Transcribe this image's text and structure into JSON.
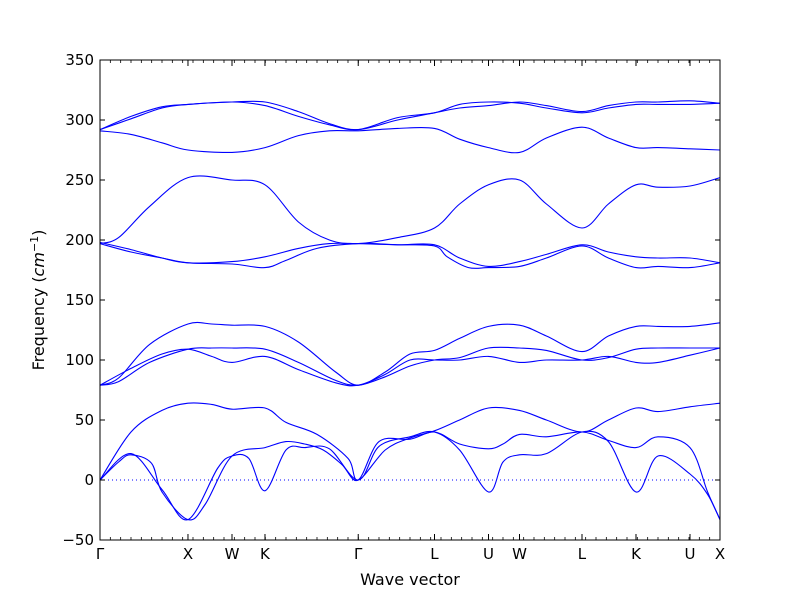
{
  "chart_data": {
    "type": "line",
    "title": "",
    "xlabel": "Wave vector",
    "ylabel_prefix": "Frequency (",
    "ylabel_unit": "cm",
    "ylabel_exp": "−1",
    "ylabel_suffix": ")",
    "ylim": [
      -50,
      350
    ],
    "yticks": [
      -50,
      0,
      50,
      100,
      150,
      200,
      250,
      300,
      350
    ],
    "ytick_labels": [
      "−50",
      "0",
      "50",
      "100",
      "150",
      "200",
      "250",
      "300",
      "350"
    ],
    "xlim": [
      0,
      1
    ],
    "high_symmetry_points": [
      {
        "label": "Γ",
        "x": 0.0
      },
      {
        "label": "X",
        "x": 0.1419
      },
      {
        "label": "W",
        "x": 0.2129
      },
      {
        "label": "K",
        "x": 0.2661
      },
      {
        "label": "Γ",
        "x": 0.4165
      },
      {
        "label": "L",
        "x": 0.5395
      },
      {
        "label": "U",
        "x": 0.6266
      },
      {
        "label": "W",
        "x": 0.6766
      },
      {
        "label": "L",
        "x": 0.7774
      },
      {
        "label": "K",
        "x": 0.8645
      },
      {
        "label": "U",
        "x": 0.9516
      },
      {
        "label": "X",
        "x": 1.0
      }
    ],
    "zero_line": 0,
    "grid": false,
    "series": [
      {
        "x": [
          0,
          0.03,
          0.05,
          0.083,
          0.1,
          0.1419,
          0.17,
          0.2129,
          0.2661,
          0.3,
          0.33,
          0.36,
          0.39,
          0.4165,
          0.45,
          0.5,
          0.5395,
          0.58,
          0.6266,
          0.65,
          0.6766,
          0.72,
          0.7774,
          0.82,
          0.8645,
          0.9,
          0.9516,
          0.98,
          1.0
        ],
        "y": [
          0,
          15,
          21,
          14,
          -10,
          -33,
          -20,
          20,
          27,
          32,
          30,
          25,
          13,
          0,
          32,
          34,
          40,
          30,
          26,
          30,
          38,
          36,
          40,
          33,
          27,
          36,
          27,
          -10,
          -33
        ]
      },
      {
        "x": [
          0,
          0.05,
          0.1,
          0.1419,
          0.19,
          0.2129,
          0.24,
          0.2661,
          0.3,
          0.33,
          0.37,
          0.4165,
          0.45,
          0.5,
          0.5395,
          0.58,
          0.6266,
          0.65,
          0.6766,
          0.72,
          0.7774,
          0.82,
          0.8645,
          0.9,
          0.9516,
          0.98,
          1.0
        ],
        "y": [
          0,
          22,
          -8,
          -33,
          10,
          20,
          18,
          -9,
          25,
          27,
          26,
          0,
          28,
          36,
          40,
          25,
          -10,
          15,
          21,
          22,
          40,
          32,
          -10,
          20,
          5,
          -12,
          -33
        ]
      },
      {
        "x": [
          0,
          0.05,
          0.1,
          0.1419,
          0.18,
          0.2129,
          0.2661,
          0.3,
          0.35,
          0.4,
          0.4165,
          0.46,
          0.5,
          0.5395,
          0.58,
          0.6266,
          0.6766,
          0.72,
          0.7774,
          0.82,
          0.8645,
          0.9,
          0.9516,
          1.0
        ],
        "y": [
          0,
          40,
          58,
          64,
          63,
          59,
          60,
          48,
          38,
          18,
          0,
          25,
          35,
          41,
          50,
          60,
          58,
          50,
          40,
          50,
          60,
          57,
          61,
          64
        ]
      },
      {
        "x": [
          0,
          0.03,
          0.08,
          0.1419,
          0.18,
          0.2129,
          0.2661,
          0.32,
          0.38,
          0.4165,
          0.46,
          0.5,
          0.5395,
          0.58,
          0.6266,
          0.6766,
          0.72,
          0.7774,
          0.82,
          0.8645,
          0.9,
          0.9516,
          1.0
        ],
        "y": [
          79,
          82,
          98,
          109,
          110,
          110,
          109,
          98,
          83,
          79,
          86,
          95,
          100,
          102,
          110,
          110,
          108,
          100,
          102,
          109,
          110,
          110,
          110
        ]
      },
      {
        "x": [
          0,
          0.05,
          0.1,
          0.1419,
          0.18,
          0.2129,
          0.2661,
          0.32,
          0.38,
          0.4165,
          0.46,
          0.5,
          0.5395,
          0.58,
          0.6266,
          0.6766,
          0.72,
          0.7774,
          0.82,
          0.8645,
          0.9,
          0.9516,
          1.0
        ],
        "y": [
          79,
          93,
          105,
          109,
          103,
          98,
          103,
          92,
          81,
          79,
          88,
          100,
          100,
          100,
          103,
          98,
          100,
          100,
          103,
          98,
          98,
          104,
          110
        ]
      },
      {
        "x": [
          0,
          0.03,
          0.08,
          0.1419,
          0.18,
          0.2129,
          0.2661,
          0.32,
          0.38,
          0.4165,
          0.46,
          0.5,
          0.5395,
          0.58,
          0.6266,
          0.6766,
          0.72,
          0.7774,
          0.82,
          0.8645,
          0.9,
          0.9516,
          1.0
        ],
        "y": [
          79,
          85,
          113,
          130,
          130,
          129,
          128,
          115,
          90,
          79,
          90,
          105,
          108,
          118,
          128,
          129,
          120,
          107,
          120,
          128,
          128,
          128,
          131
        ]
      },
      {
        "x": [
          0,
          0.05,
          0.1,
          0.1419,
          0.2129,
          0.2661,
          0.32,
          0.37,
          0.4165,
          0.48,
          0.5395,
          0.58,
          0.6266,
          0.6766,
          0.72,
          0.7774,
          0.82,
          0.8645,
          0.9,
          0.9516,
          1.0
        ],
        "y": [
          198,
          192,
          185,
          181,
          182,
          186,
          193,
          197,
          197,
          196,
          196,
          185,
          178,
          182,
          188,
          196,
          190,
          186,
          185,
          185,
          181
        ]
      },
      {
        "x": [
          0,
          0.05,
          0.1,
          0.1419,
          0.2129,
          0.2661,
          0.3,
          0.35,
          0.4165,
          0.48,
          0.5395,
          0.56,
          0.5943,
          0.6266,
          0.6766,
          0.72,
          0.7774,
          0.82,
          0.8645,
          0.9,
          0.9516,
          1.0
        ],
        "y": [
          197,
          190,
          185,
          181,
          180,
          177,
          183,
          193,
          197,
          196,
          195,
          186,
          177,
          177,
          178,
          185,
          195,
          185,
          177,
          178,
          177,
          181
        ]
      },
      {
        "x": [
          0,
          0.03,
          0.08,
          0.1419,
          0.2129,
          0.2661,
          0.32,
          0.37,
          0.4165,
          0.48,
          0.5395,
          0.58,
          0.6266,
          0.6766,
          0.72,
          0.7774,
          0.82,
          0.8645,
          0.9,
          0.9516,
          1.0
        ],
        "y": [
          197,
          202,
          228,
          252,
          250,
          246,
          215,
          200,
          197,
          202,
          210,
          230,
          246,
          250,
          230,
          210,
          230,
          246,
          244,
          245,
          252
        ]
      },
      {
        "x": [
          0,
          0.05,
          0.1,
          0.1419,
          0.2129,
          0.2661,
          0.32,
          0.37,
          0.4165,
          0.48,
          0.5395,
          0.58,
          0.6266,
          0.6766,
          0.72,
          0.7774,
          0.82,
          0.8645,
          0.9,
          0.9516,
          1.0
        ],
        "y": [
          291,
          288,
          281,
          275,
          273,
          277,
          287,
          291,
          291,
          293,
          293,
          284,
          277,
          273,
          285,
          294,
          285,
          277,
          277,
          276,
          275
        ]
      },
      {
        "x": [
          0,
          0.05,
          0.1,
          0.1419,
          0.2129,
          0.2661,
          0.32,
          0.37,
          0.4165,
          0.48,
          0.5395,
          0.58,
          0.6266,
          0.6766,
          0.72,
          0.7774,
          0.82,
          0.8645,
          0.9,
          0.9516,
          1.0
        ],
        "y": [
          292,
          301,
          310,
          313,
          315,
          315,
          307,
          297,
          292,
          300,
          306,
          310,
          312,
          315,
          312,
          307,
          312,
          315,
          315,
          316,
          314
        ]
      },
      {
        "x": [
          0,
          0.05,
          0.1,
          0.1419,
          0.2129,
          0.2661,
          0.32,
          0.37,
          0.4165,
          0.48,
          0.5395,
          0.58,
          0.6266,
          0.6766,
          0.72,
          0.7774,
          0.82,
          0.8645,
          0.9,
          0.9516,
          1.0
        ],
        "y": [
          292,
          303,
          311,
          313,
          315,
          312,
          303,
          296,
          292,
          302,
          306,
          313,
          315,
          314,
          310,
          306,
          310,
          313,
          313,
          313,
          314
        ]
      }
    ]
  }
}
